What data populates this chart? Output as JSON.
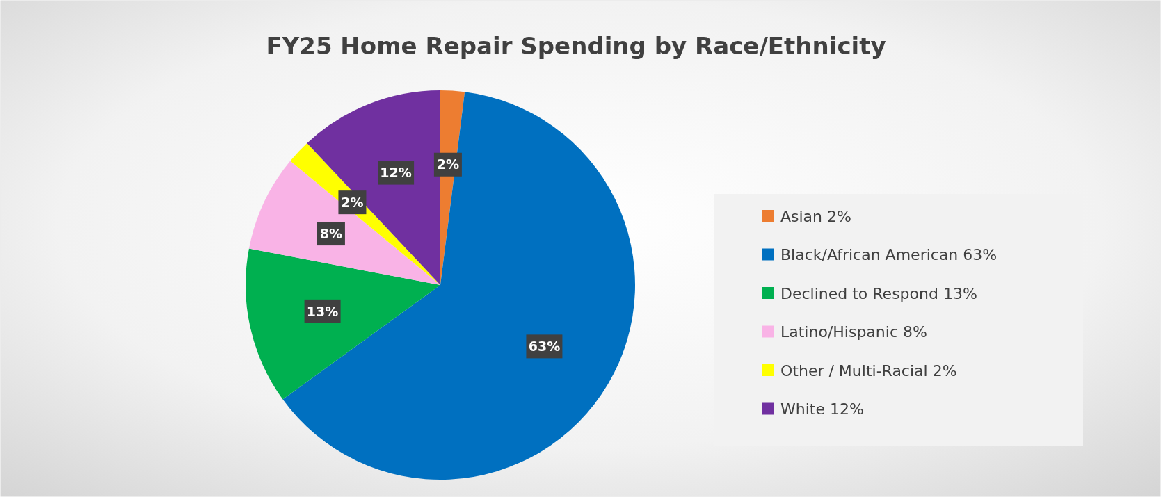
{
  "chart_data": {
    "type": "pie",
    "title": "FY25 Home Repair Spending by Race/Ethnicity",
    "categories": [
      "Asian 2%",
      "Black/African American 63%",
      "Declined to Respond 13%",
      "Latino/Hispanic 8%",
      "Other / Multi-Racial 2%",
      "White 12%"
    ],
    "values": [
      2,
      63,
      13,
      8,
      2,
      12
    ],
    "colors": [
      "#ed7d31",
      "#0070c0",
      "#00b050",
      "#f9b3e6",
      "#ffff00",
      "#7030a0"
    ],
    "value_labels": [
      "2%",
      "63%",
      "13%",
      "8%",
      "2%",
      "12%"
    ],
    "legend": "right"
  }
}
